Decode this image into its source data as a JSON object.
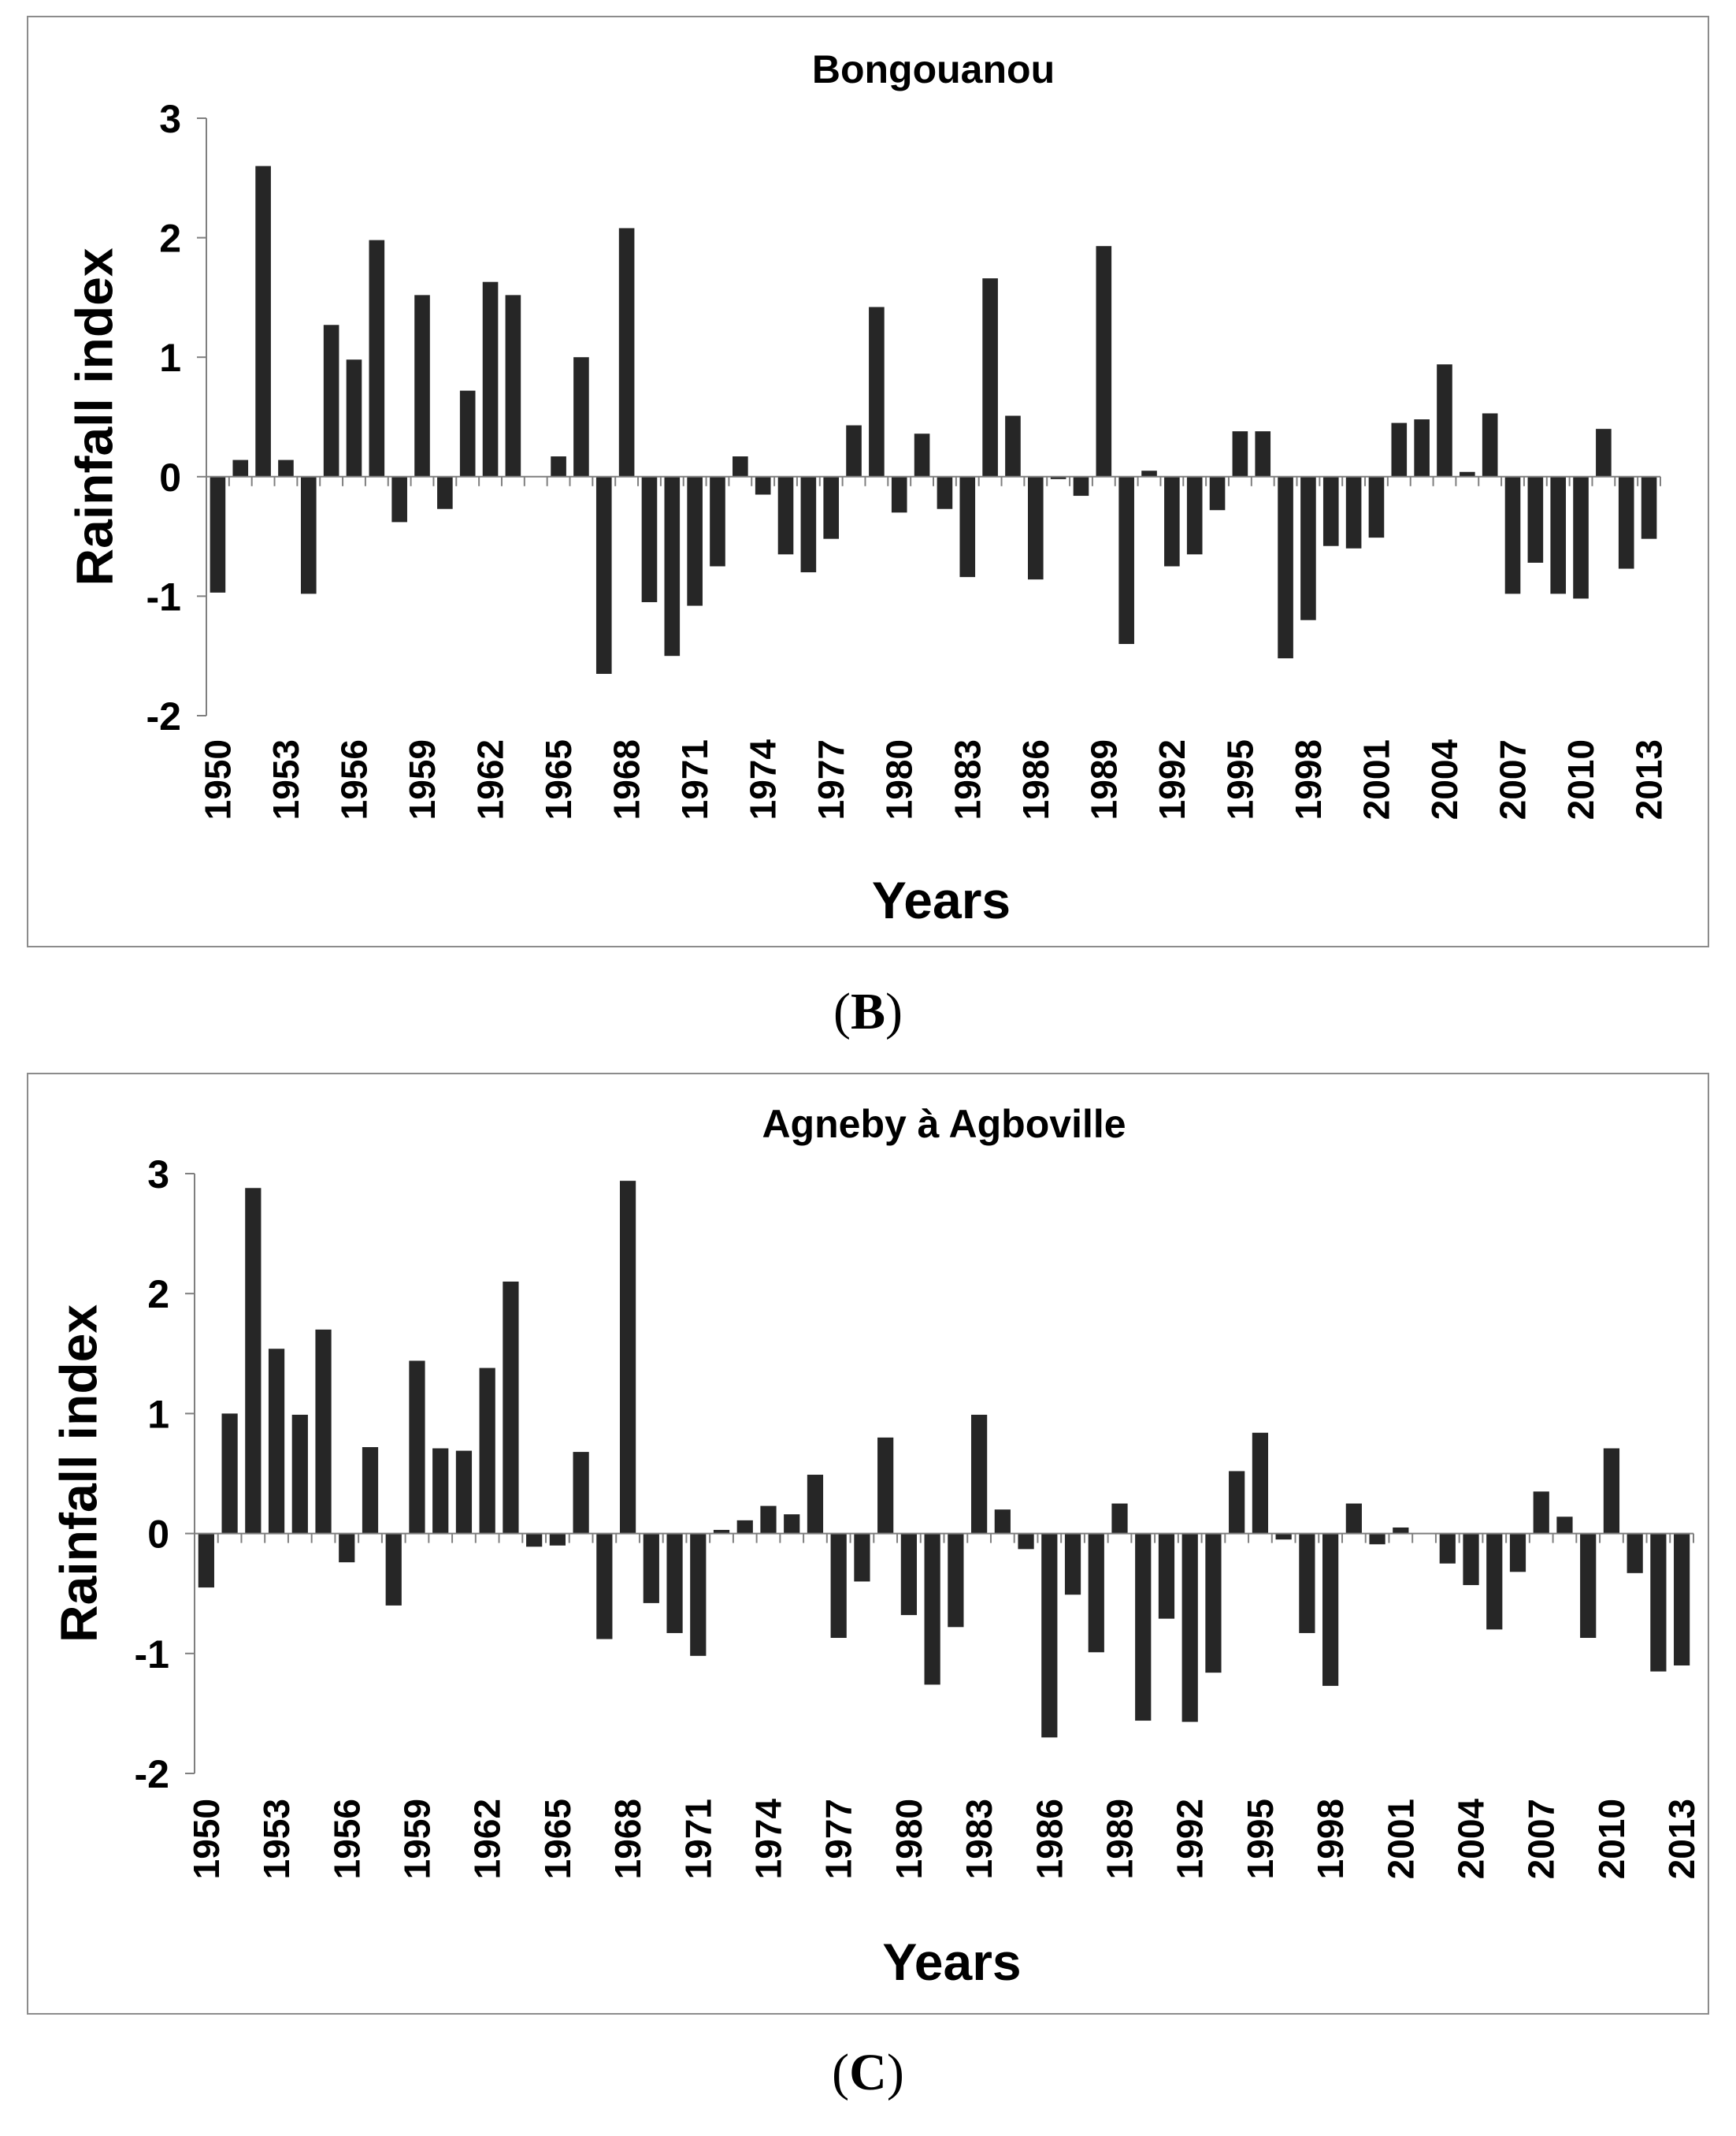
{
  "chart_data": [
    {
      "panel": "(B)",
      "panel_letter": "B",
      "type": "bar",
      "title": "Bongouanou",
      "xlabel": "Years",
      "ylabel": "Rainfall index",
      "ylim": [
        -2,
        3
      ],
      "yticks": [
        "3",
        "2",
        "1",
        "0",
        "-1",
        "-2"
      ],
      "xtick_labels": [
        "1950",
        "1953",
        "1956",
        "1959",
        "1962",
        "1965",
        "1968",
        "1971",
        "1974",
        "1977",
        "1980",
        "1983",
        "1986",
        "1989",
        "1992",
        "1995",
        "1998",
        "2001",
        "2004",
        "2007",
        "2010",
        "2013"
      ],
      "categories": [
        1950,
        1951,
        1952,
        1953,
        1954,
        1955,
        1956,
        1957,
        1958,
        1959,
        1960,
        1961,
        1962,
        1963,
        1964,
        1965,
        1966,
        1967,
        1968,
        1969,
        1970,
        1971,
        1972,
        1973,
        1974,
        1975,
        1976,
        1977,
        1978,
        1979,
        1980,
        1981,
        1982,
        1983,
        1984,
        1985,
        1986,
        1987,
        1988,
        1989,
        1990,
        1991,
        1992,
        1993,
        1994,
        1995,
        1996,
        1997,
        1998,
        1999,
        2000,
        2001,
        2002,
        2003,
        2004,
        2005,
        2006,
        2007,
        2008,
        2009,
        2010,
        2011,
        2012,
        2013
      ],
      "values": [
        -0.97,
        0.14,
        2.6,
        0.14,
        -0.98,
        1.27,
        0.98,
        1.98,
        -0.38,
        1.52,
        -0.27,
        0.72,
        1.63,
        1.52,
        0.0,
        0.17,
        1.0,
        -1.65,
        2.08,
        -1.05,
        -1.5,
        -1.08,
        -0.75,
        0.17,
        -0.15,
        -0.65,
        -0.8,
        -0.52,
        0.43,
        1.42,
        -0.3,
        0.36,
        -0.27,
        -0.84,
        1.66,
        0.51,
        -0.86,
        -0.02,
        -0.16,
        1.93,
        -1.4,
        0.05,
        -0.75,
        -0.65,
        -0.28,
        0.38,
        0.38,
        -1.52,
        -1.2,
        -0.58,
        -0.6,
        -0.51,
        0.45,
        0.48,
        0.94,
        0.04,
        0.53,
        -0.98,
        -0.72,
        -0.98,
        -1.02,
        0.4,
        -0.77,
        -0.52
      ]
    },
    {
      "panel": "(C)",
      "panel_letter": "C",
      "type": "bar",
      "title": "Agneby à Agboville",
      "xlabel": "Years",
      "ylabel": "Rainfall index",
      "ylim": [
        -2,
        3
      ],
      "yticks": [
        "3",
        "2",
        "1",
        "0",
        "-1",
        "-2"
      ],
      "xtick_labels": [
        "1950",
        "1953",
        "1956",
        "1959",
        "1962",
        "1965",
        "1968",
        "1971",
        "1974",
        "1977",
        "1980",
        "1983",
        "1986",
        "1989",
        "1992",
        "1995",
        "1998",
        "2001",
        "2004",
        "2007",
        "2010",
        "2013"
      ],
      "categories": [
        1950,
        1951,
        1952,
        1953,
        1954,
        1955,
        1956,
        1957,
        1958,
        1959,
        1960,
        1961,
        1962,
        1963,
        1964,
        1965,
        1966,
        1967,
        1968,
        1969,
        1970,
        1971,
        1972,
        1973,
        1974,
        1975,
        1976,
        1977,
        1978,
        1979,
        1980,
        1981,
        1982,
        1983,
        1984,
        1985,
        1986,
        1987,
        1988,
        1989,
        1990,
        1991,
        1992,
        1993,
        1994,
        1995,
        1996,
        1997,
        1998,
        1999,
        2000,
        2001,
        2002,
        2003,
        2004,
        2005,
        2006,
        2007,
        2008,
        2009,
        2010,
        2011,
        2012,
        2013
      ],
      "values": [
        -0.45,
        1.0,
        2.88,
        1.54,
        0.99,
        1.7,
        -0.24,
        0.72,
        -0.6,
        1.44,
        0.71,
        0.69,
        1.38,
        2.1,
        -0.11,
        -0.1,
        0.68,
        -0.88,
        2.94,
        -0.58,
        -0.83,
        -1.02,
        0.03,
        0.11,
        0.23,
        0.16,
        0.49,
        -0.87,
        -0.4,
        0.8,
        -0.68,
        -1.26,
        -0.78,
        0.99,
        0.2,
        -0.13,
        -1.7,
        -0.51,
        -0.99,
        0.25,
        -1.56,
        -0.71,
        -1.57,
        -1.16,
        0.52,
        0.84,
        -0.05,
        -0.83,
        -1.27,
        0.25,
        -0.09,
        0.05,
        0.0,
        -0.25,
        -0.43,
        -0.8,
        -0.32,
        0.35,
        0.14,
        -0.87,
        0.71,
        -0.33,
        -1.15,
        -1.1
      ]
    }
  ],
  "colors": {
    "bar": "#262626",
    "axis": "#7f7f7f",
    "frame": "#8c8c8c",
    "text": "#000000"
  }
}
